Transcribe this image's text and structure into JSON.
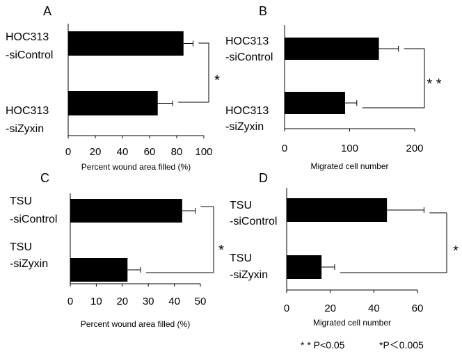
{
  "chart_data": [
    {
      "panel": "A",
      "type": "bar",
      "orientation": "horizontal",
      "categories": [
        "HOC313 -siControl",
        "HOC313 -siZyxin"
      ],
      "cat_lines": [
        [
          "HOC313",
          "-siControl"
        ],
        [
          "HOC313",
          "-siZyxin"
        ]
      ],
      "values": [
        85,
        66
      ],
      "errors": [
        7,
        11
      ],
      "xlabel": "Percent wound area filled (%)",
      "xlim": [
        0,
        100
      ],
      "ticks": [
        0,
        20,
        40,
        60,
        80,
        100
      ],
      "significance": "*"
    },
    {
      "panel": "B",
      "type": "bar",
      "orientation": "horizontal",
      "categories": [
        "HOC313 -siControl",
        "HOC313 -siZyxin"
      ],
      "cat_lines": [
        [
          "HOC313",
          "-siControl"
        ],
        [
          "HOC313",
          "-siZyxin"
        ]
      ],
      "values": [
        145,
        93
      ],
      "errors": [
        30,
        18
      ],
      "xlabel": "Migrated cell number",
      "xlim": [
        0,
        200
      ],
      "ticks": [
        0,
        100,
        200
      ],
      "significance": "* *"
    },
    {
      "panel": "C",
      "type": "bar",
      "orientation": "horizontal",
      "categories": [
        "TSU -siControl",
        "TSU -siZyxin"
      ],
      "cat_lines": [
        [
          "TSU",
          "-siControl"
        ],
        [
          "TSU",
          "-siZyxin"
        ]
      ],
      "values": [
        43,
        22
      ],
      "errors": [
        5,
        5
      ],
      "xlabel": "Percent wound area filled (%)",
      "xlim": [
        0,
        50
      ],
      "ticks": [
        0,
        10,
        20,
        30,
        40,
        50
      ],
      "significance": "*"
    },
    {
      "panel": "D",
      "type": "bar",
      "orientation": "horizontal",
      "categories": [
        "TSU -siControl",
        "TSU -siZyxin"
      ],
      "cat_lines": [
        [
          "TSU",
          "-siControl"
        ],
        [
          "TSU",
          "-siZyxin"
        ]
      ],
      "values": [
        46,
        16
      ],
      "errors": [
        17,
        6
      ],
      "xlabel": "Migrated cell number",
      "xlim": [
        0,
        60
      ],
      "ticks": [
        0,
        20,
        40,
        60
      ],
      "significance": "*"
    }
  ],
  "legend": {
    "double_star": "* * P<0.05",
    "single_star": "*P＜0.005"
  }
}
